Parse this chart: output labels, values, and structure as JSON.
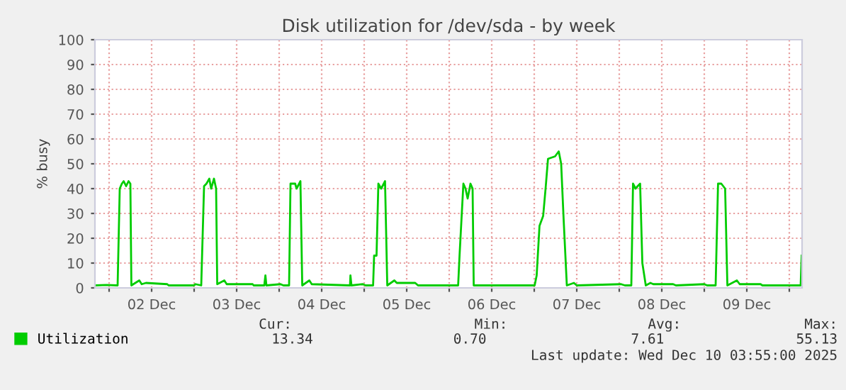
{
  "chart_data": {
    "type": "line",
    "title": "Disk utilization for /dev/sda - by week",
    "ylabel": "% busy",
    "x": [
      "2025-12-01T20:00",
      "2025-12-01T23:12",
      "2025-12-02T02:24",
      "2025-12-02T03:00",
      "2025-12-02T03:36",
      "2025-12-02T04:07",
      "2025-12-02T04:48",
      "2025-12-02T05:29",
      "2025-12-02T06:00",
      "2025-12-02T06:17",
      "2025-12-02T08:31",
      "2025-12-02T09:12",
      "2025-12-02T10:24",
      "2025-12-02T16:24",
      "2025-12-02T16:48",
      "2025-12-02T23:53",
      "2025-12-03T00:24",
      "2025-12-03T02:00",
      "2025-12-03T02:48",
      "2025-12-03T03:29",
      "2025-12-03T04:17",
      "2025-12-03T04:48",
      "2025-12-03T05:36",
      "2025-12-03T06:12",
      "2025-12-03T06:31",
      "2025-12-03T08:31",
      "2025-12-03T09:12",
      "2025-12-03T16:31",
      "2025-12-03T16:48",
      "2025-12-03T19:48",
      "2025-12-03T20:07",
      "2025-12-03T20:24",
      "2025-12-04T00:24",
      "2025-12-04T01:12",
      "2025-12-04T02:48",
      "2025-12-04T03:12",
      "2025-12-04T04:31",
      "2025-12-04T04:55",
      "2025-12-04T06:00",
      "2025-12-04T06:31",
      "2025-12-04T08:31",
      "2025-12-04T09:12",
      "2025-12-04T20:00",
      "2025-12-04T20:07",
      "2025-12-04T20:24",
      "2025-12-04T23:36",
      "2025-12-05T00:24",
      "2025-12-05T02:31",
      "2025-12-05T02:48",
      "2025-12-05T03:29",
      "2025-12-05T04:00",
      "2025-12-05T04:48",
      "2025-12-05T05:53",
      "2025-12-05T06:31",
      "2025-12-05T08:31",
      "2025-12-05T09:12",
      "2025-12-05T14:24",
      "2025-12-05T15:12",
      "2025-12-06T02:31",
      "2025-12-06T02:55",
      "2025-12-06T04:00",
      "2025-12-06T04:36",
      "2025-12-06T05:12",
      "2025-12-06T06:00",
      "2025-12-06T06:36",
      "2025-12-06T06:55",
      "2025-12-07T00:07",
      "2025-12-07T00:41",
      "2025-12-07T01:29",
      "2025-12-07T02:31",
      "2025-12-07T03:12",
      "2025-12-07T03:53",
      "2025-12-07T05:53",
      "2025-12-07T06:55",
      "2025-12-07T07:36",
      "2025-12-07T08:17",
      "2025-12-07T09:12",
      "2025-12-07T11:12",
      "2025-12-07T12:00",
      "2025-12-08T00:31",
      "2025-12-08T01:36",
      "2025-12-08T03:24",
      "2025-12-08T03:53",
      "2025-12-08T04:36",
      "2025-12-08T05:12",
      "2025-12-08T05:53",
      "2025-12-08T06:31",
      "2025-12-08T07:29",
      "2025-12-08T08:48",
      "2025-12-08T09:36",
      "2025-12-08T15:12",
      "2025-12-08T16:00",
      "2025-12-09T00:00",
      "2025-12-09T00:48",
      "2025-12-09T03:12",
      "2025-12-09T03:53",
      "2025-12-09T04:48",
      "2025-12-09T05:53",
      "2025-12-09T06:31",
      "2025-12-09T09:12",
      "2025-12-09T10:00",
      "2025-12-09T15:53",
      "2025-12-09T16:24",
      "2025-12-10T03:12",
      "2025-12-10T03:29"
    ],
    "series": [
      {
        "name": "Utilization",
        "color": "#00cc00",
        "values": [
          1,
          1.2,
          1,
          40,
          42,
          43,
          41,
          43,
          42,
          1,
          3,
          1.5,
          2,
          1.5,
          1,
          1,
          1.5,
          1,
          41,
          42,
          44,
          40,
          44,
          40,
          1.5,
          3,
          1.5,
          1.5,
          1,
          1,
          5,
          1,
          1.5,
          1,
          1,
          42,
          42,
          40,
          43,
          1,
          3,
          1.5,
          1,
          5,
          1,
          1.5,
          1,
          1,
          13,
          13,
          42,
          40,
          43,
          1,
          3,
          2,
          2,
          1,
          1,
          13,
          42,
          40,
          36,
          42,
          40,
          1,
          1,
          5,
          25,
          29,
          40,
          52,
          53,
          55,
          50,
          28,
          1,
          2,
          1,
          1.5,
          1,
          1,
          42,
          40,
          41,
          42,
          10,
          1,
          2,
          1.5,
          1.5,
          1,
          1.5,
          1,
          1,
          42,
          42,
          40,
          1,
          3,
          1.5,
          1.5,
          1,
          1,
          13
        ]
      }
    ],
    "xlim": [
      "2025-12-01T20:00",
      "2025-12-10T03:36"
    ],
    "xticks": [
      {
        "value": "2025-12-02T00:00",
        "label": null
      },
      {
        "value": "2025-12-02T12:00",
        "label": "02 Dec"
      },
      {
        "value": "2025-12-03T00:00",
        "label": null
      },
      {
        "value": "2025-12-03T12:00",
        "label": "03 Dec"
      },
      {
        "value": "2025-12-04T00:00",
        "label": null
      },
      {
        "value": "2025-12-04T12:00",
        "label": "04 Dec"
      },
      {
        "value": "2025-12-05T00:00",
        "label": null
      },
      {
        "value": "2025-12-05T12:00",
        "label": "05 Dec"
      },
      {
        "value": "2025-12-06T00:00",
        "label": null
      },
      {
        "value": "2025-12-06T12:00",
        "label": "06 Dec"
      },
      {
        "value": "2025-12-07T00:00",
        "label": null
      },
      {
        "value": "2025-12-07T12:00",
        "label": "07 Dec"
      },
      {
        "value": "2025-12-08T00:00",
        "label": null
      },
      {
        "value": "2025-12-08T12:00",
        "label": "08 Dec"
      },
      {
        "value": "2025-12-09T00:00",
        "label": null
      },
      {
        "value": "2025-12-09T12:00",
        "label": "09 Dec"
      },
      {
        "value": "2025-12-10T00:00",
        "label": null
      }
    ],
    "ylim": [
      0,
      100
    ],
    "yticks": [
      0,
      10,
      20,
      30,
      40,
      50,
      60,
      70,
      80,
      90,
      100
    ],
    "grid": true,
    "legend": "bottom left",
    "marker": "none",
    "line_style": "solid",
    "annotations": [
      "Cur:",
      "Min:",
      "Avg:",
      "Max:",
      "13.34",
      "0.70",
      "7.61",
      "55.13",
      "Last update: Wed Dec 10 03:55:00 2025"
    ]
  }
}
